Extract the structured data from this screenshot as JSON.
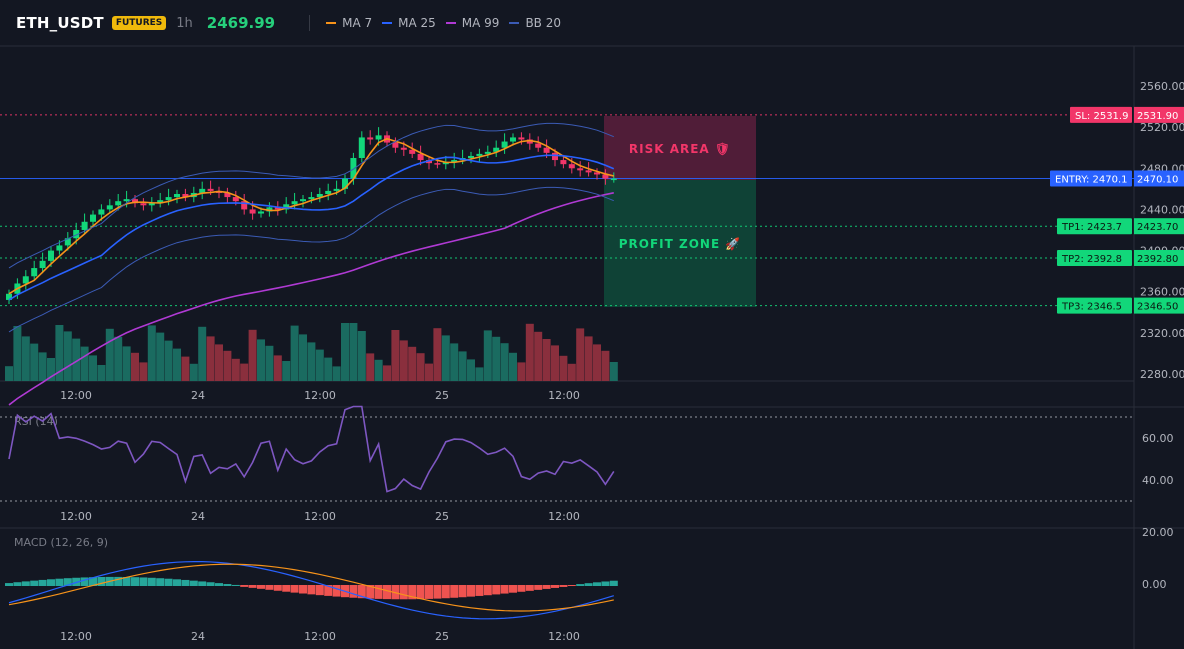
{
  "header": {
    "symbol": "ETH_USDT",
    "badge": "FUTURES",
    "timeframe": "1h",
    "last_price": "2469.99",
    "indicators": [
      {
        "label": "MA 7",
        "color": "#f7931a"
      },
      {
        "label": "MA 25",
        "color": "#2962ff"
      },
      {
        "label": "MA 99",
        "color": "#b03ad4"
      },
      {
        "label": "BB 20",
        "color": "#3b5bb5"
      }
    ]
  },
  "main_chart": {
    "price_ticks": [
      "2560.00",
      "2520.00",
      "2480.00",
      "2440.00",
      "2400.00",
      "2360.00",
      "2320.00",
      "2280.00"
    ],
    "time_ticks": [
      "12:00",
      "24",
      "12:00",
      "25",
      "12:00"
    ],
    "risk_label": "RISK AREA 🛡",
    "profit_label": "PROFIT ZONE 🚀",
    "levels": [
      {
        "name": "sl",
        "tag": "SL: 2531.9",
        "value": "2531.90",
        "color": "#f23669"
      },
      {
        "name": "entry",
        "tag": "ENTRY: 2470.1",
        "value": "2470.10",
        "color": "#2962ff"
      },
      {
        "name": "tp1",
        "tag": "TP1: 2423.7",
        "value": "2423.70",
        "color": "#12d77a"
      },
      {
        "name": "tp2",
        "tag": "TP2: 2392.8",
        "value": "2392.80",
        "color": "#12d77a"
      },
      {
        "name": "tp3",
        "tag": "TP3: 2346.5",
        "value": "2346.50",
        "color": "#12d77a"
      }
    ]
  },
  "rsi": {
    "label": "RSI (14)",
    "ticks": [
      "60.00",
      "40.00"
    ],
    "time_ticks": [
      "12:00",
      "24",
      "12:00",
      "25",
      "12:00"
    ]
  },
  "macd": {
    "label": "MACD (12, 26, 9)",
    "ticks": [
      "20.00",
      "0.00"
    ],
    "time_ticks": [
      "12:00",
      "24",
      "12:00",
      "25",
      "12:00"
    ]
  },
  "colors": {
    "up": "#12d77a",
    "down": "#f23669",
    "vol_up": "#1a6b60",
    "vol_down": "#8a2f3d"
  }
}
